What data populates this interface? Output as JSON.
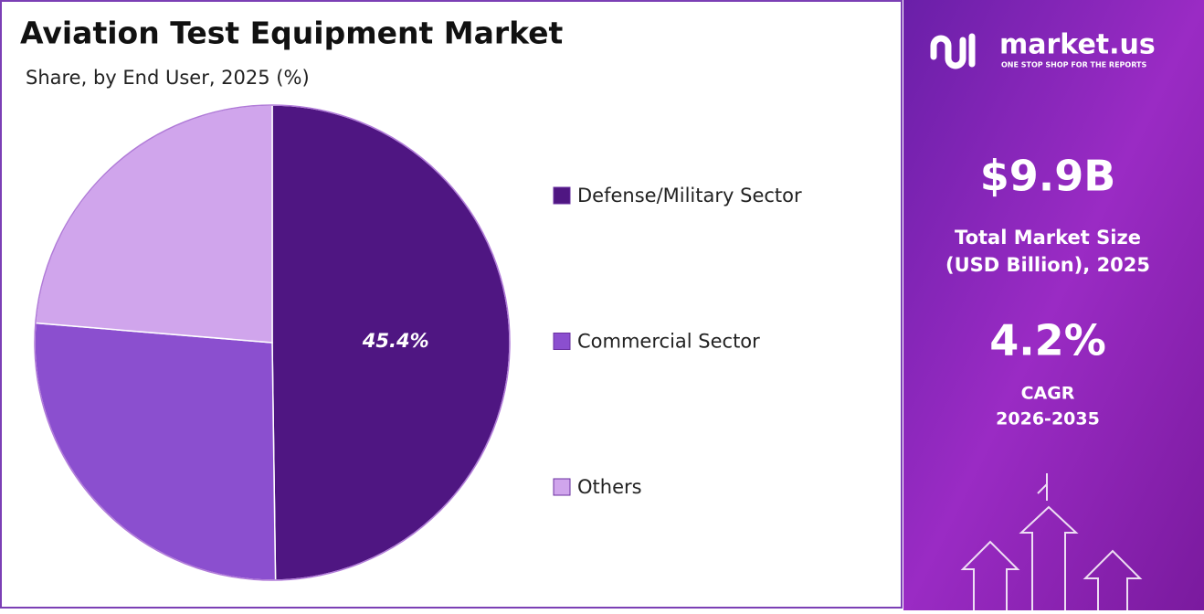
{
  "chart_data": {
    "type": "pie",
    "title": "Aviation Test Equipment Market",
    "subtitle": "Share, by End User, 2025 (%)",
    "categories": [
      "Defense/Military Sector",
      "Commercial Sector",
      "Others"
    ],
    "values": [
      45.4,
      24.2,
      21.6
    ],
    "value_labels": [
      "45.4%",
      null,
      null
    ],
    "colors": [
      "#4f1682",
      "#8b4fcf",
      "#d0a5ec"
    ]
  },
  "panel": {
    "brand": "market.us",
    "tagline": "ONE STOP SHOP FOR THE REPORTS",
    "market_size": "$9.9B",
    "market_size_label": [
      "Total Market Size",
      "(USD Billion), 2025"
    ],
    "cagr": "4.2%",
    "cagr_label": "CAGR",
    "cagr_period": "2026-2035"
  }
}
